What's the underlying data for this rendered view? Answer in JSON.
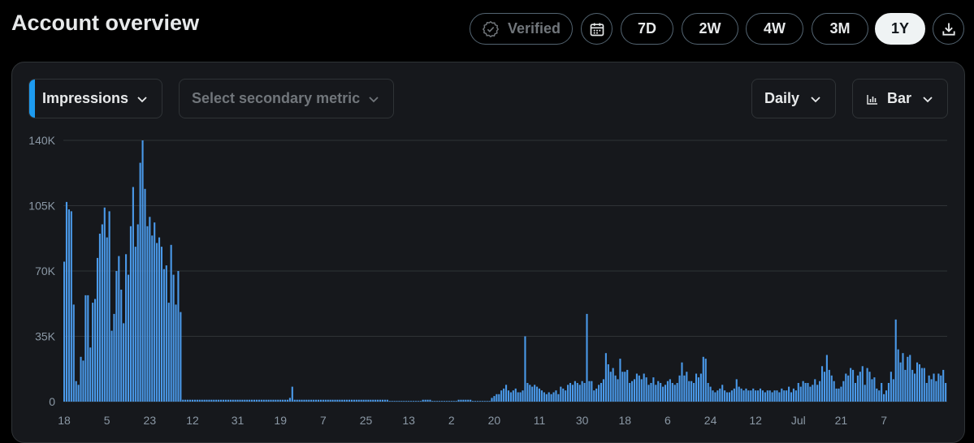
{
  "header": {
    "title": "Account overview"
  },
  "toolbar": {
    "verified_label": "Verified",
    "ranges": [
      "7D",
      "2W",
      "4W",
      "3M",
      "1Y"
    ],
    "active_range": "1Y"
  },
  "controls": {
    "primary_metric": "Impressions",
    "secondary_placeholder": "Select secondary metric",
    "interval": "Daily",
    "chart_type_label": "Bar"
  },
  "colors": {
    "bar": "#4a99e9",
    "accent": "#1d9bf0",
    "grid": "#2f3336",
    "panel": "#16181c"
  },
  "chart_data": {
    "type": "bar",
    "ylim": [
      0,
      140000
    ],
    "yticks": [
      0,
      35000,
      70000,
      105000,
      140000
    ],
    "yticklabels": [
      "0",
      "35K",
      "70K",
      "105K",
      "140K"
    ],
    "xticklabels": [
      "18",
      "5",
      "23",
      "12",
      "31",
      "19",
      "7",
      "25",
      "13",
      "2",
      "20",
      "11",
      "30",
      "18",
      "6",
      "24",
      "12",
      "Jul",
      "21",
      "7"
    ],
    "xtick_indices": [
      0,
      18,
      36,
      54,
      73,
      91,
      109,
      127,
      145,
      163,
      181,
      200,
      218,
      236,
      254,
      272,
      291,
      309,
      327,
      345
    ],
    "grid": true,
    "values": [
      75000,
      107000,
      103000,
      102000,
      52000,
      11000,
      9000,
      24000,
      22000,
      57000,
      57000,
      29000,
      53000,
      55000,
      77000,
      90000,
      95000,
      104000,
      88000,
      102000,
      38000,
      47000,
      70000,
      78000,
      60000,
      42000,
      79000,
      68000,
      94000,
      115000,
      83000,
      95000,
      128000,
      140000,
      114000,
      94000,
      99000,
      89000,
      96000,
      85000,
      88000,
      83000,
      71000,
      73000,
      53000,
      84000,
      68000,
      52000,
      70000,
      48000,
      1000,
      1000,
      1000,
      1000,
      1000,
      1000,
      1000,
      1000,
      1000,
      1000,
      1000,
      1000,
      1000,
      1000,
      1000,
      1000,
      1000,
      1000,
      1000,
      1000,
      1000,
      1000,
      1000,
      1000,
      1000,
      1000,
      1000,
      1000,
      1000,
      1000,
      1000,
      1000,
      1000,
      1000,
      1000,
      1000,
      1000,
      1000,
      1000,
      1000,
      1000,
      1000,
      1000,
      1000,
      1000,
      2000,
      8000,
      1000,
      1000,
      1000,
      1000,
      1000,
      1000,
      1000,
      1000,
      1000,
      1000,
      1000,
      1000,
      1000,
      1000,
      1000,
      1000,
      1000,
      1000,
      1000,
      1000,
      1000,
      1000,
      1000,
      1000,
      1000,
      1000,
      1000,
      1000,
      1000,
      1000,
      1000,
      1000,
      1000,
      1000,
      1000,
      1000,
      1000,
      1000,
      1000,
      1000,
      0,
      0,
      0,
      0,
      0,
      0,
      0,
      0,
      0,
      0,
      0,
      0,
      0,
      0,
      1000,
      1000,
      1000,
      1000,
      0,
      0,
      0,
      0,
      0,
      0,
      0,
      0,
      0,
      0,
      0,
      1000,
      1000,
      1000,
      1000,
      1000,
      1000,
      0,
      0,
      0,
      0,
      0,
      0,
      0,
      0,
      2000,
      3000,
      4000,
      4000,
      6000,
      7000,
      9000,
      6000,
      5000,
      6000,
      7000,
      5000,
      5000,
      6000,
      35000,
      10000,
      9000,
      8000,
      9000,
      8000,
      7000,
      6000,
      5000,
      4000,
      5000,
      4000,
      5000,
      6000,
      4000,
      8000,
      7000,
      6000,
      9000,
      10000,
      9000,
      11000,
      10000,
      9000,
      11000,
      10000,
      47000,
      11000,
      11000,
      6000,
      7000,
      9000,
      10000,
      12000,
      26000,
      20000,
      16000,
      18000,
      14000,
      12000,
      23000,
      16000,
      16000,
      17000,
      10000,
      11000,
      12000,
      15000,
      14000,
      12000,
      15000,
      13000,
      9000,
      10000,
      13000,
      9000,
      11000,
      10000,
      8000,
      9000,
      11000,
      12000,
      10000,
      9000,
      10000,
      14000,
      21000,
      14000,
      16000,
      11000,
      11000,
      10000,
      15000,
      13000,
      15000,
      24000,
      23000,
      10000,
      8000,
      6000,
      5000,
      6000,
      7000,
      9000,
      6000,
      5000,
      5000,
      6000,
      7000,
      12000,
      8000,
      7000,
      6000,
      7000,
      6000,
      6000,
      7000,
      6000,
      6000,
      7000,
      6000,
      5000,
      6000,
      6000,
      5000,
      6000,
      6000,
      5000,
      7000,
      6000,
      6000,
      8000,
      5000,
      7000,
      6000,
      10000,
      8000,
      11000,
      10000,
      10000,
      8000,
      9000,
      12000,
      9000,
      11000,
      19000,
      16000,
      25000,
      17000,
      14000,
      11000,
      7000,
      7000,
      8000,
      11000,
      15000,
      14000,
      18000,
      17000,
      10000,
      14000,
      16000,
      19000,
      9000,
      18000,
      16000,
      12000,
      13000,
      7000,
      6000,
      10000,
      4000,
      6000,
      10000,
      16000,
      12000,
      44000,
      28000,
      21000,
      26000,
      17000,
      24000,
      25000,
      17000,
      15000,
      21000,
      20000,
      18000,
      18000,
      10000,
      14000,
      12000,
      15000,
      11000,
      15000,
      14000,
      17000,
      10000
    ]
  }
}
